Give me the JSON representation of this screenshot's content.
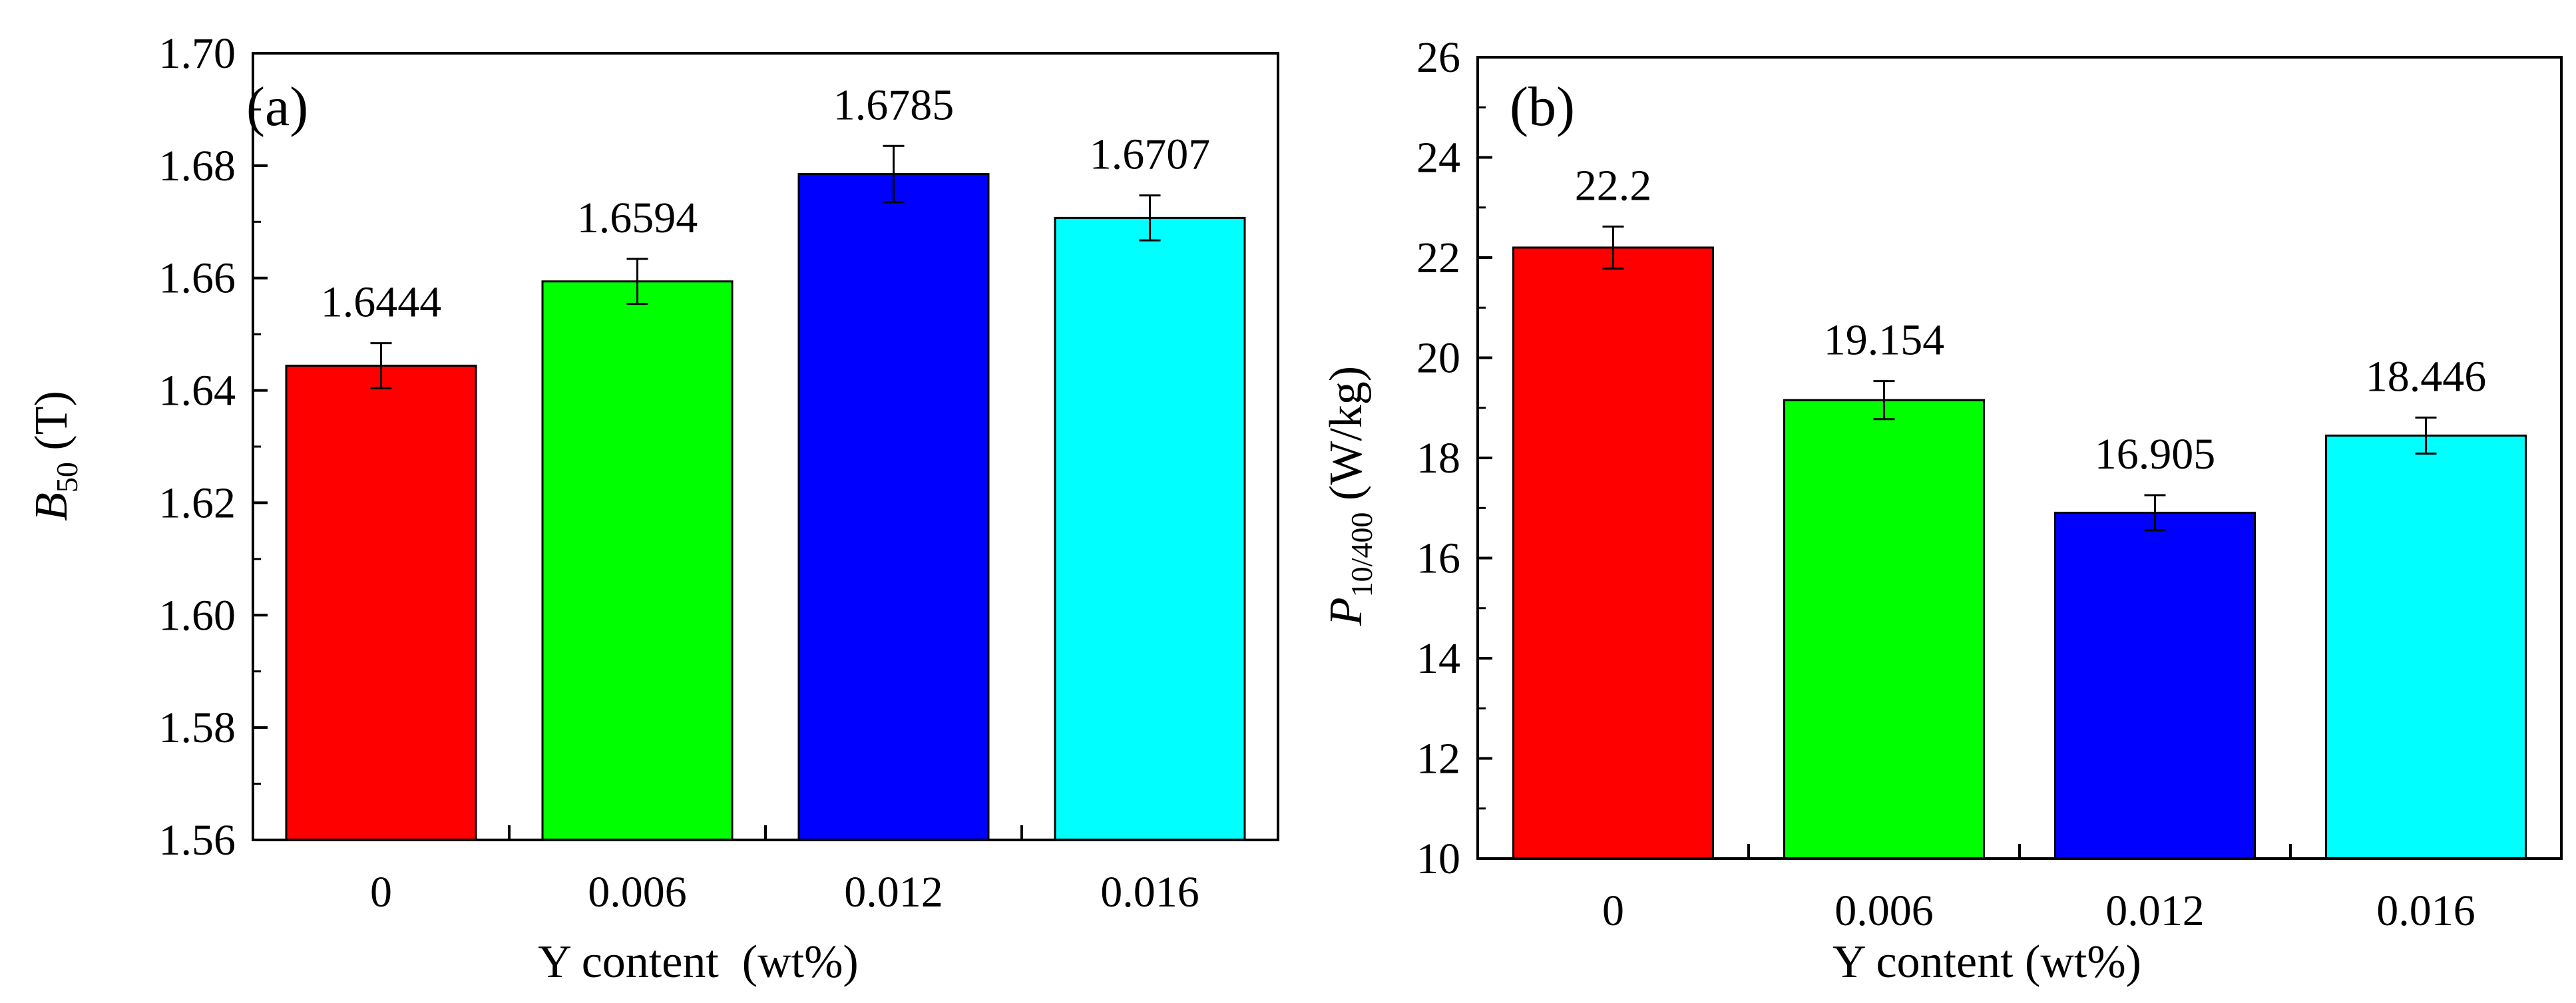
{
  "chart_data": [
    {
      "type": "bar",
      "panel_label": "(a)",
      "categories": [
        "0",
        "0.006",
        "0.012",
        "0.016"
      ],
      "values": [
        1.6444,
        1.6594,
        1.6785,
        1.6707
      ],
      "value_labels": [
        "1.6444",
        "1.6594",
        "1.6785",
        "1.6707"
      ],
      "errors": [
        0.004,
        0.004,
        0.005,
        0.004
      ],
      "bar_colors": [
        "#ff0000",
        "#00ff00",
        "#0000ff",
        "#00ffff"
      ],
      "xlabel": "Y content  (wt%)",
      "ylabel_main": "B",
      "ylabel_sub": "50",
      "ylabel_unit": " (T)",
      "ylim": [
        1.56,
        1.7
      ],
      "yticks": [
        1.56,
        1.58,
        1.6,
        1.62,
        1.64,
        1.66,
        1.68,
        1.7
      ],
      "ytick_labels": [
        "1.56",
        "1.58",
        "1.60",
        "1.62",
        "1.64",
        "1.66",
        "1.68",
        "1.70"
      ],
      "grid": false
    },
    {
      "type": "bar",
      "panel_label": "(b)",
      "categories": [
        "0",
        "0.006",
        "0.012",
        "0.016"
      ],
      "values": [
        22.2,
        19.154,
        16.905,
        18.446
      ],
      "value_labels": [
        "22.2",
        "19.154",
        "16.905",
        "18.446"
      ],
      "errors": [
        0.42,
        0.38,
        0.35,
        0.36
      ],
      "bar_colors": [
        "#ff0000",
        "#00ff00",
        "#0000ff",
        "#00ffff"
      ],
      "xlabel": "Y content (wt%)",
      "ylabel_main": "P",
      "ylabel_sub": "10/400",
      "ylabel_unit": " (W/kg)",
      "ylim": [
        10,
        26
      ],
      "yticks": [
        10,
        12,
        14,
        16,
        18,
        20,
        22,
        24,
        26
      ],
      "ytick_labels": [
        "10",
        "12",
        "14",
        "16",
        "18",
        "20",
        "22",
        "24",
        "26"
      ],
      "grid": false
    }
  ]
}
